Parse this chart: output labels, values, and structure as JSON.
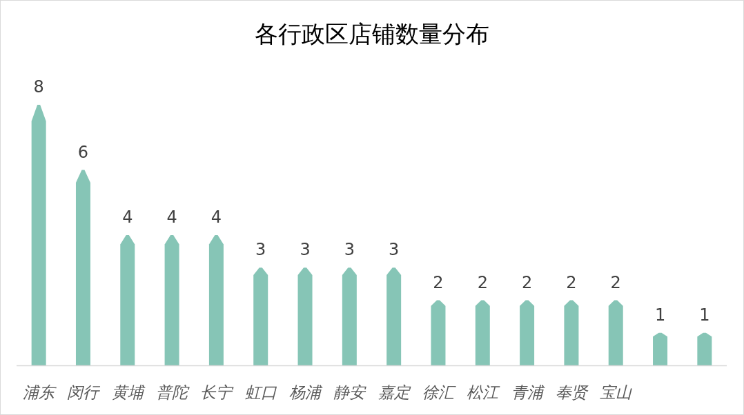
{
  "chart_data": {
    "type": "bar",
    "title": "各行政区店铺数量分布",
    "categories": [
      "浦东",
      "闵行",
      "黄埔",
      "普陀",
      "长宁",
      "虹口",
      "杨浦",
      "静安",
      "嘉定",
      "徐汇",
      "松江",
      "青浦",
      "奉贤",
      "宝山",
      null,
      null
    ],
    "values": [
      8,
      6,
      4,
      4,
      4,
      3,
      3,
      3,
      3,
      2,
      2,
      2,
      2,
      2,
      1,
      1
    ],
    "color": "#86c5b6",
    "data_labels": true
  }
}
